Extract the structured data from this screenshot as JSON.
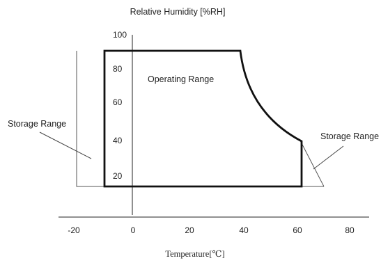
{
  "y_axis_title": "Relative Humidity [%RH]",
  "x_axis_title": "Temperature[℃]",
  "x_ticks": [
    "-20",
    "0",
    "20",
    "40",
    "60",
    "80"
  ],
  "y_ticks": [
    "100",
    "80",
    "60",
    "40",
    "20"
  ],
  "operating_label": "Operating Range",
  "storage_label_left": "Storage Range",
  "storage_label_right": "Storage Range",
  "operating_region": {
    "temperature_min": -10,
    "temperature_max": 60,
    "humidity_min": 15,
    "humidity_max": 90,
    "curve_start": {
      "temperature": 40,
      "humidity": 90
    },
    "curve_end": {
      "temperature": 60,
      "humidity": 40
    }
  },
  "storage_region": {
    "temperature_min": -20,
    "temperature_max": 70,
    "humidity_min": 15,
    "humidity_max": 90
  },
  "colors": {
    "line": "#111111",
    "thin_line": "#555555",
    "text": "#222222"
  }
}
